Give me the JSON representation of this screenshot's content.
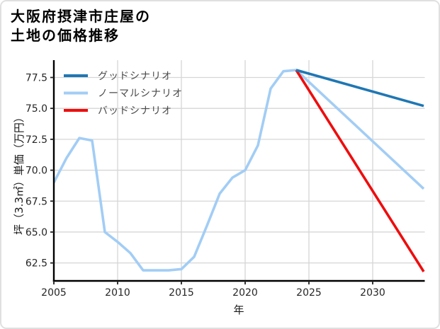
{
  "figure": {
    "background": "#ffffff",
    "border_color": "#e0e0e0"
  },
  "chart_data": {
    "type": "line",
    "title_lines": [
      "大阪府摂津市庄屋の",
      "土地の価格推移"
    ],
    "xlabel": "年",
    "ylabel": "坪（3.3㎡）単価（万円）",
    "xlim": [
      2005,
      2034
    ],
    "ylim": [
      61.05,
      78.9
    ],
    "xticks": [
      2005,
      2010,
      2015,
      2020,
      2025,
      2030
    ],
    "xtick_labels": [
      "2005",
      "2010",
      "2015",
      "2020",
      "2025",
      "2030"
    ],
    "yticks": [
      62.5,
      65.0,
      67.5,
      70.0,
      72.5,
      75.0,
      77.5
    ],
    "ytick_labels": [
      "62.5",
      "65.0",
      "67.5",
      "70.0",
      "72.5",
      "75.0",
      "77.5"
    ],
    "grid": true,
    "grid_color": "#d6d6d6",
    "legend_position": "upper-left",
    "legend": [
      {
        "label": "グッドシナリオ",
        "color": "#1f77b4"
      },
      {
        "label": "ノーマルシナリオ",
        "color": "#a2cdf5"
      },
      {
        "label": "バッドシナリオ",
        "color": "#ee0d0d"
      }
    ],
    "series": [
      {
        "name": "ノーマルシナリオ",
        "color": "#a2cdf5",
        "x": [
          2005,
          2006,
          2007,
          2008,
          2009,
          2010,
          2011,
          2012,
          2013,
          2014,
          2015,
          2016,
          2017,
          2018,
          2019,
          2020,
          2021,
          2022,
          2023,
          2024,
          2034
        ],
        "y": [
          69.0,
          71.0,
          72.6,
          72.4,
          65.0,
          64.2,
          63.3,
          61.9,
          61.9,
          61.9,
          62.0,
          63.0,
          65.5,
          68.1,
          69.4,
          70.0,
          72.0,
          76.6,
          78.0,
          78.1,
          68.5
        ]
      },
      {
        "name": "バッドシナリオ",
        "color": "#ee0d0d",
        "x": [
          2024,
          2034
        ],
        "y": [
          78.1,
          61.8
        ]
      },
      {
        "name": "グッドシナリオ",
        "color": "#1f77b4",
        "x": [
          2024,
          2034
        ],
        "y": [
          78.1,
          75.2
        ]
      }
    ]
  }
}
